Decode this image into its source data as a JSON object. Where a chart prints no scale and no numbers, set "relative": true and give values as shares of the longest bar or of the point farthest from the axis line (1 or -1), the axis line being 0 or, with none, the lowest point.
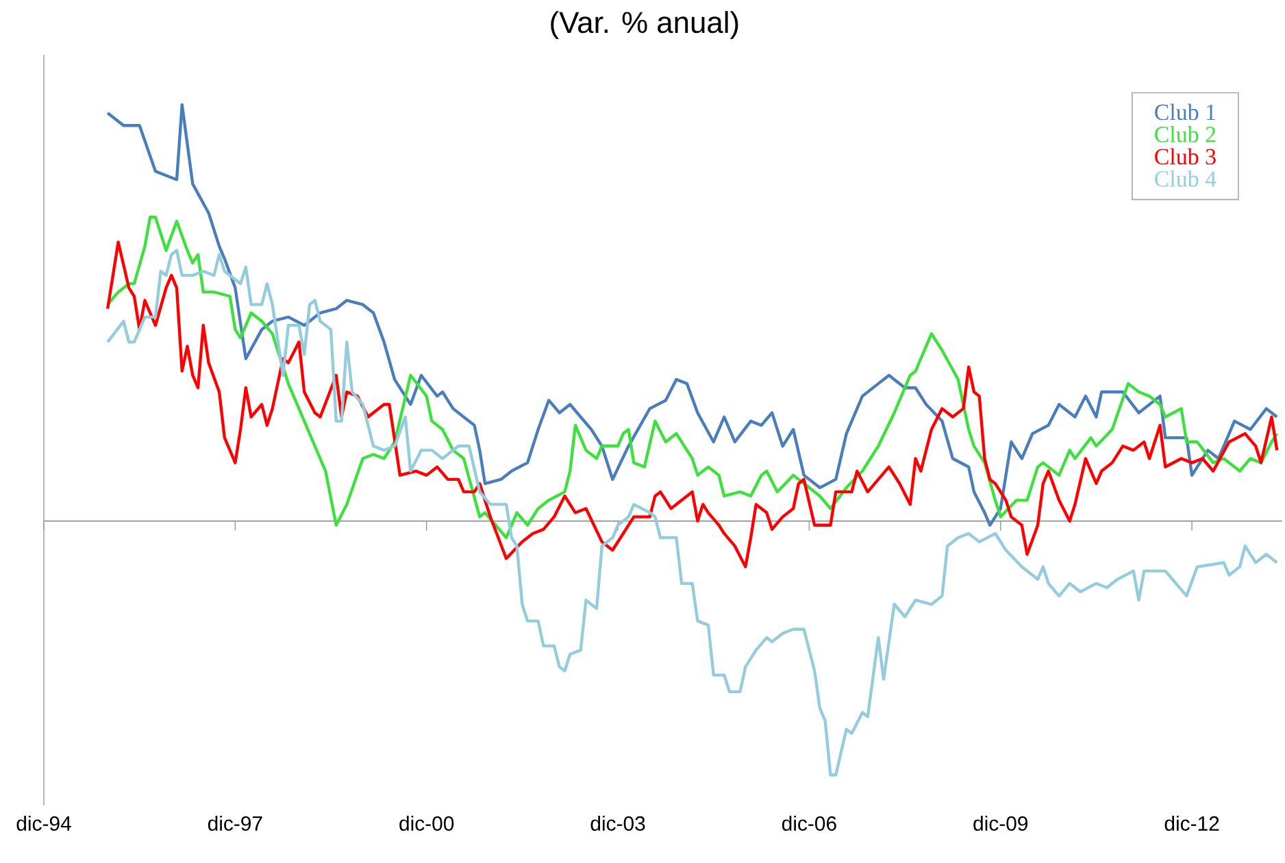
{
  "chart_data": {
    "type": "line",
    "title": "(Var. % anual)",
    "relative": true,
    "legend": "top right",
    "xlim": [
      "1994-12",
      "2014-05"
    ],
    "xticks": [
      {
        "value": "1994-12",
        "label": "dic-94"
      },
      {
        "value": "1997-12",
        "label": "dic-97"
      },
      {
        "value": "2000-12",
        "label": "dic-00"
      },
      {
        "value": "2003-12",
        "label": "dic-03"
      },
      {
        "value": "2006-12",
        "label": "dic-06"
      },
      {
        "value": "2009-12",
        "label": "dic-09"
      },
      {
        "value": "2012-12",
        "label": "dic-12"
      }
    ],
    "series": [
      {
        "name": "Club 1",
        "color": "#4a7ebb",
        "x": [
          "1995-12",
          "1996-03",
          "1996-06",
          "1996-09",
          "1996-11",
          "1997-01",
          "1997-02",
          "1997-04",
          "1997-07",
          "1997-09",
          "1997-10",
          "1997-12",
          "1998-02",
          "1998-05",
          "1998-07",
          "1998-10",
          "1999-01",
          "1999-04",
          "1999-07",
          "1999-09",
          "1999-12",
          "2000-02",
          "2000-04",
          "2000-06",
          "2000-09",
          "2000-11",
          "2001-02",
          "2001-03",
          "2001-05",
          "2001-09",
          "2001-10",
          "2001-11",
          "2002-02",
          "2002-04",
          "2002-07",
          "2002-09",
          "2002-11",
          "2003-01",
          "2003-03",
          "2003-07",
          "2003-09",
          "2003-11",
          "2004-02",
          "2004-06",
          "2004-09",
          "2004-11",
          "2005-01",
          "2005-03",
          "2005-06",
          "2005-08",
          "2005-10",
          "2006-01",
          "2006-03",
          "2006-05",
          "2006-07",
          "2006-09",
          "2006-11",
          "2007-02",
          "2007-05",
          "2007-07",
          "2007-10",
          "2008-01",
          "2008-03",
          "2008-06",
          "2008-08",
          "2008-10",
          "2009-01",
          "2009-03",
          "2009-06",
          "2009-07",
          "2009-09",
          "2009-10",
          "2009-12",
          "2010-02",
          "2010-04",
          "2010-06",
          "2010-09",
          "2010-11",
          "2011-02",
          "2011-04",
          "2011-06",
          "2011-07",
          "2011-11",
          "2012-02",
          "2012-06",
          "2012-07",
          "2012-11",
          "2012-12",
          "2013-03",
          "2013-05",
          "2013-08",
          "2013-11",
          "2014-02",
          "2014-04"
        ],
        "values": [
          0.98,
          0.95,
          0.95,
          0.84,
          0.83,
          0.82,
          1.0,
          0.81,
          0.74,
          0.66,
          0.63,
          0.56,
          0.39,
          0.46,
          0.48,
          0.49,
          0.47,
          0.5,
          0.51,
          0.53,
          0.52,
          0.5,
          0.43,
          0.34,
          0.28,
          0.35,
          0.3,
          0.31,
          0.27,
          0.23,
          0.17,
          0.09,
          0.1,
          0.12,
          0.14,
          0.22,
          0.29,
          0.26,
          0.28,
          0.22,
          0.18,
          0.1,
          0.18,
          0.27,
          0.29,
          0.34,
          0.33,
          0.26,
          0.19,
          0.25,
          0.19,
          0.24,
          0.23,
          0.26,
          0.18,
          0.22,
          0.11,
          0.08,
          0.1,
          0.21,
          0.3,
          0.33,
          0.35,
          0.32,
          0.32,
          0.28,
          0.24,
          0.15,
          0.13,
          0.07,
          0.02,
          -0.01,
          0.03,
          0.19,
          0.15,
          0.21,
          0.23,
          0.28,
          0.25,
          0.3,
          0.25,
          0.31,
          0.31,
          0.26,
          0.3,
          0.2,
          0.2,
          0.11,
          0.17,
          0.15,
          0.24,
          0.22,
          0.27,
          0.25
        ]
      },
      {
        "name": "Club 2",
        "color": "#3ee03e",
        "x": [
          "1995-12",
          "1996-02",
          "1996-04",
          "1996-05",
          "1996-07",
          "1996-08",
          "1996-09",
          "1996-11",
          "1997-01",
          "1997-03",
          "1997-04",
          "1997-05",
          "1997-06",
          "1997-08",
          "1997-11",
          "1997-12",
          "1998-01",
          "1998-03",
          "1998-05",
          "1998-07",
          "1998-10",
          "1999-01",
          "1999-04",
          "1999-05",
          "1999-07",
          "1999-09",
          "1999-12",
          "2000-02",
          "2000-04",
          "2000-06",
          "2000-09",
          "2000-12",
          "2001-01",
          "2001-03",
          "2001-05",
          "2001-07",
          "2001-10",
          "2001-11",
          "2002-01",
          "2002-03",
          "2002-05",
          "2002-07",
          "2002-09",
          "2002-11",
          "2003-02",
          "2003-03",
          "2003-04",
          "2003-06",
          "2003-08",
          "2003-09",
          "2003-12",
          "2004-01",
          "2004-02",
          "2004-03",
          "2004-05",
          "2004-07",
          "2004-09",
          "2004-11",
          "2005-02",
          "2005-03",
          "2005-05",
          "2005-07",
          "2005-08",
          "2005-11",
          "2006-01",
          "2006-03",
          "2006-04",
          "2006-06",
          "2006-09",
          "2006-12",
          "2007-02",
          "2007-04",
          "2007-07",
          "2007-10",
          "2008-01",
          "2008-04",
          "2008-07",
          "2008-08",
          "2008-11",
          "2009-01",
          "2009-04",
          "2009-06",
          "2009-07",
          "2009-09",
          "2009-11",
          "2009-12",
          "2010-03",
          "2010-05",
          "2010-07",
          "2010-08",
          "2010-11",
          "2011-01",
          "2011-02",
          "2011-05",
          "2011-06",
          "2011-09",
          "2011-12",
          "2012-02",
          "2012-04",
          "2012-06",
          "2012-07",
          "2012-10",
          "2012-11",
          "2013-01",
          "2013-04",
          "2013-06",
          "2013-09",
          "2013-11",
          "2014-01",
          "2014-03",
          "2014-04"
        ],
        "values": [
          0.52,
          0.55,
          0.57,
          0.57,
          0.66,
          0.73,
          0.73,
          0.65,
          0.72,
          0.65,
          0.62,
          0.64,
          0.55,
          0.55,
          0.54,
          0.46,
          0.44,
          0.5,
          0.48,
          0.45,
          0.33,
          0.24,
          0.15,
          0.12,
          -0.01,
          0.04,
          0.15,
          0.16,
          0.15,
          0.19,
          0.35,
          0.3,
          0.24,
          0.22,
          0.17,
          0.15,
          0.01,
          0.02,
          -0.01,
          -0.04,
          0.02,
          -0.01,
          0.03,
          0.05,
          0.07,
          0.12,
          0.23,
          0.17,
          0.15,
          0.18,
          0.18,
          0.21,
          0.22,
          0.14,
          0.13,
          0.24,
          0.19,
          0.21,
          0.15,
          0.11,
          0.13,
          0.11,
          0.06,
          0.07,
          0.06,
          0.11,
          0.12,
          0.07,
          0.11,
          0.08,
          0.06,
          0.03,
          0.08,
          0.12,
          0.18,
          0.26,
          0.35,
          0.36,
          0.45,
          0.41,
          0.34,
          0.22,
          0.18,
          0.14,
          0.05,
          0.01,
          0.05,
          0.05,
          0.13,
          0.14,
          0.11,
          0.17,
          0.15,
          0.2,
          0.18,
          0.22,
          0.33,
          0.31,
          0.3,
          0.28,
          0.25,
          0.27,
          0.19,
          0.19,
          0.14,
          0.15,
          0.12,
          0.15,
          0.14,
          0.19,
          0.21
        ]
      },
      {
        "name": "Club 3",
        "color": "#ff0000",
        "x": [
          "1995-12",
          "1996-02",
          "1996-04",
          "1996-05",
          "1996-06",
          "1996-07",
          "1996-09",
          "1996-11",
          "1996-12",
          "1997-01",
          "1997-02",
          "1997-03",
          "1997-04",
          "1997-05",
          "1997-06",
          "1997-07",
          "1997-09",
          "1997-10",
          "1997-12",
          "1998-01",
          "1998-02",
          "1998-03",
          "1998-05",
          "1998-06",
          "1998-07",
          "1998-09",
          "1998-10",
          "1998-12",
          "1999-01",
          "1999-03",
          "1999-04",
          "1999-07",
          "1999-08",
          "1999-09",
          "1999-11",
          "2000-01",
          "2000-04",
          "2000-05",
          "2000-07",
          "2000-10",
          "2000-12",
          "2001-02",
          "2001-04",
          "2001-06",
          "2001-07",
          "2001-09",
          "2001-10",
          "2001-12",
          "2002-03",
          "2002-06",
          "2002-08",
          "2002-10",
          "2002-12",
          "2003-02",
          "2003-04",
          "2003-06",
          "2003-09",
          "2003-11",
          "2004-01",
          "2004-03",
          "2004-06",
          "2004-07",
          "2004-08",
          "2004-10",
          "2004-12",
          "2005-02",
          "2005-03",
          "2005-04",
          "2005-05",
          "2005-07",
          "2005-08",
          "2005-10",
          "2005-12",
          "2006-01",
          "2006-02",
          "2006-04",
          "2006-05",
          "2006-07",
          "2006-09",
          "2006-10",
          "2006-11",
          "2007-01",
          "2007-04",
          "2007-05",
          "2007-08",
          "2007-09",
          "2007-11",
          "2008-01",
          "2008-03",
          "2008-05",
          "2008-07",
          "2008-08",
          "2008-09",
          "2008-11",
          "2009-01",
          "2009-03",
          "2009-05",
          "2009-06",
          "2009-07",
          "2009-08",
          "2009-09",
          "2009-10",
          "2009-11",
          "2010-01",
          "2010-02",
          "2010-04",
          "2010-05",
          "2010-07",
          "2010-08",
          "2010-09",
          "2010-11",
          "2011-01",
          "2011-02",
          "2011-04",
          "2011-06",
          "2011-07",
          "2011-09",
          "2011-11",
          "2012-01",
          "2012-03",
          "2012-04",
          "2012-06",
          "2012-07",
          "2012-10",
          "2012-12",
          "2013-02",
          "2013-04",
          "2013-07",
          "2013-10",
          "2013-12",
          "2014-01",
          "2014-03",
          "2014-04"
        ],
        "values": [
          0.51,
          0.67,
          0.56,
          0.54,
          0.46,
          0.53,
          0.47,
          0.56,
          0.59,
          0.56,
          0.36,
          0.42,
          0.35,
          0.32,
          0.47,
          0.38,
          0.31,
          0.2,
          0.14,
          0.22,
          0.32,
          0.25,
          0.28,
          0.23,
          0.27,
          0.39,
          0.38,
          0.43,
          0.31,
          0.26,
          0.25,
          0.35,
          0.25,
          0.31,
          0.3,
          0.25,
          0.28,
          0.28,
          0.11,
          0.12,
          0.11,
          0.13,
          0.1,
          0.1,
          0.07,
          0.07,
          0.09,
          0.01,
          -0.09,
          -0.05,
          -0.03,
          -0.02,
          0.01,
          0.06,
          0.02,
          0.03,
          -0.05,
          -0.07,
          -0.03,
          0.01,
          0.01,
          0.06,
          0.07,
          0.03,
          0.05,
          0.07,
          0.0,
          0.04,
          0.02,
          -0.01,
          -0.03,
          -0.06,
          -0.11,
          -0.04,
          0.04,
          0.02,
          -0.02,
          0.01,
          0.03,
          0.09,
          0.1,
          -0.01,
          -0.01,
          0.07,
          0.07,
          0.12,
          0.07,
          0.1,
          0.13,
          0.09,
          0.04,
          0.15,
          0.12,
          0.22,
          0.27,
          0.25,
          0.27,
          0.37,
          0.31,
          0.3,
          0.15,
          0.1,
          0.09,
          0.05,
          0.01,
          -0.01,
          -0.08,
          -0.01,
          0.09,
          0.12,
          0.05,
          0.0,
          0.04,
          0.15,
          0.09,
          0.12,
          0.14,
          0.18,
          0.17,
          0.19,
          0.15,
          0.23,
          0.13,
          0.15,
          0.14,
          0.15,
          0.12,
          0.19,
          0.21,
          0.18,
          0.14,
          0.25,
          0.17
        ]
      },
      {
        "name": "Club 4",
        "color": "#93cddd",
        "x": [
          "1995-12",
          "1996-03",
          "1996-04",
          "1996-05",
          "1996-07",
          "1996-09",
          "1996-10",
          "1996-11",
          "1996-12",
          "1997-01",
          "1997-02",
          "1997-04",
          "1997-06",
          "1997-08",
          "1997-09",
          "1997-10",
          "1998-01",
          "1998-02",
          "1998-03",
          "1998-05",
          "1998-06",
          "1998-07",
          "1998-09",
          "1998-10",
          "1998-12",
          "1999-01",
          "1999-02",
          "1999-03",
          "1999-04",
          "1999-06",
          "1999-07",
          "1999-08",
          "1999-09",
          "1999-10",
          "1999-12",
          "2000-02",
          "2000-04",
          "2000-06",
          "2000-08",
          "2000-09",
          "2000-11",
          "2001-01",
          "2001-03",
          "2001-06",
          "2001-08",
          "2001-10",
          "2001-12",
          "2002-03",
          "2002-04",
          "2002-05",
          "2002-06",
          "2002-07",
          "2002-09",
          "2002-10",
          "2002-12",
          "2003-01",
          "2003-02",
          "2003-03",
          "2003-05",
          "2003-06",
          "2003-08",
          "2003-09",
          "2003-11",
          "2003-12",
          "2004-02",
          "2004-03",
          "2004-06",
          "2004-07",
          "2004-08",
          "2004-11",
          "2004-12",
          "2005-02",
          "2005-03",
          "2005-05",
          "2005-06",
          "2005-08",
          "2005-09",
          "2005-11",
          "2005-12",
          "2006-02",
          "2006-04",
          "2006-05",
          "2006-07",
          "2006-09",
          "2006-11",
          "2007-01",
          "2007-02",
          "2007-03",
          "2007-04",
          "2007-05",
          "2007-07",
          "2007-08",
          "2007-10",
          "2007-11",
          "2008-01",
          "2008-02",
          "2008-04",
          "2008-06",
          "2008-08",
          "2008-11",
          "2009-01",
          "2009-02",
          "2009-04",
          "2009-06",
          "2009-08",
          "2009-11",
          "2010-01",
          "2010-04",
          "2010-05",
          "2010-07",
          "2010-08",
          "2010-09",
          "2010-11",
          "2011-01",
          "2011-03",
          "2011-06",
          "2011-08",
          "2011-10",
          "2012-01",
          "2012-02",
          "2012-03",
          "2012-07",
          "2012-09",
          "2012-11",
          "2013-01",
          "2013-06",
          "2013-07",
          "2013-09",
          "2013-10",
          "2013-12",
          "2014-02",
          "2014-04"
        ],
        "values": [
          0.43,
          0.48,
          0.43,
          0.43,
          0.49,
          0.49,
          0.6,
          0.59,
          0.64,
          0.65,
          0.59,
          0.59,
          0.6,
          0.59,
          0.64,
          0.6,
          0.57,
          0.61,
          0.52,
          0.52,
          0.57,
          0.52,
          0.35,
          0.47,
          0.47,
          0.4,
          0.52,
          0.53,
          0.48,
          0.46,
          0.24,
          0.24,
          0.43,
          0.31,
          0.28,
          0.18,
          0.17,
          0.18,
          0.25,
          0.12,
          0.17,
          0.17,
          0.15,
          0.18,
          0.18,
          0.07,
          0.04,
          0.04,
          -0.04,
          -0.06,
          -0.2,
          -0.24,
          -0.24,
          -0.3,
          -0.3,
          -0.35,
          -0.36,
          -0.32,
          -0.31,
          -0.19,
          -0.21,
          -0.06,
          -0.04,
          -0.01,
          0.01,
          0.04,
          0.02,
          0.01,
          -0.04,
          -0.04,
          -0.15,
          -0.15,
          -0.24,
          -0.25,
          -0.37,
          -0.37,
          -0.41,
          -0.41,
          -0.35,
          -0.31,
          -0.28,
          -0.29,
          -0.27,
          -0.26,
          -0.26,
          -0.36,
          -0.45,
          -0.48,
          -0.61,
          -0.61,
          -0.5,
          -0.51,
          -0.46,
          -0.47,
          -0.28,
          -0.38,
          -0.2,
          -0.23,
          -0.19,
          -0.2,
          -0.18,
          -0.06,
          -0.04,
          -0.03,
          -0.05,
          -0.03,
          -0.07,
          -0.11,
          -0.12,
          -0.14,
          -0.11,
          -0.15,
          -0.18,
          -0.15,
          -0.17,
          -0.15,
          -0.16,
          -0.14,
          -0.12,
          -0.19,
          -0.12,
          -0.12,
          -0.15,
          -0.18,
          -0.11,
          -0.1,
          -0.13,
          -0.11,
          -0.06,
          -0.1,
          -0.08,
          -0.1
        ]
      }
    ]
  }
}
